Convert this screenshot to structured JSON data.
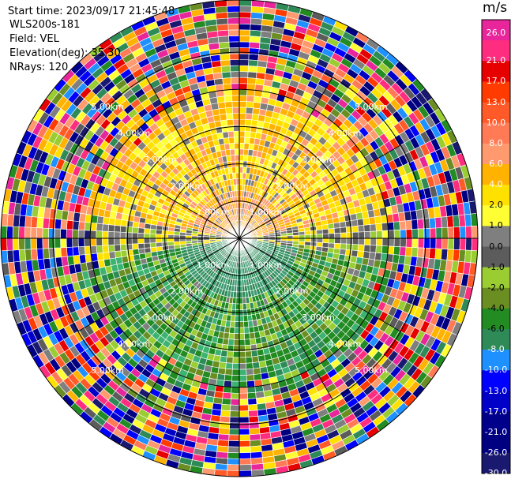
{
  "header": {
    "start_time": "Start time: 2023/09/17 21:45:48",
    "instrument": "WLS200s-181",
    "field": "Field: VEL",
    "elevation": "Elevation(deg): 35.30",
    "nrays": "NRays: 120"
  },
  "colorbar": {
    "unit": "m/s",
    "ticks": [
      "26.0",
      "21.0",
      "17.0",
      "13.0",
      "10.0",
      "8.0",
      "6.0",
      "4.0",
      "2.0",
      "1.0",
      "0.0",
      "-1.0",
      "-2.0",
      "-4.0",
      "-6.0",
      "-8.0",
      "-10.0",
      "-13.0",
      "-17.0",
      "-21.0",
      "-26.0",
      "-30.0"
    ],
    "colors": [
      "#e8259a",
      "#ff2d7f",
      "#e60000",
      "#ff3b00",
      "#ff5a28",
      "#ff7a55",
      "#ff9a6e",
      "#ffb300",
      "#ffe100",
      "#ffff33",
      "#7f7f7f",
      "#5c5c5c",
      "#9acd32",
      "#6b8e23",
      "#228b22",
      "#2e8b57",
      "#1e90ff",
      "#0000ff",
      "#0000c8",
      "#00008b",
      "#000080",
      "#191970"
    ]
  },
  "chart_data": {
    "type": "heatmap",
    "projection": "polar PPI (plan position indicator)",
    "field": "VEL",
    "units": "m/s",
    "rays": 120,
    "elevation_deg": 35.3,
    "range_ring_labels": [
      "1.00km",
      "2.00km",
      "3.00km",
      "4.00km",
      "5.00km"
    ],
    "range_rings_km": [
      1,
      2,
      3,
      4,
      5
    ],
    "max_range_km": 6.4,
    "spoke_angles_deg": [
      0,
      30,
      60,
      90,
      120,
      150,
      180,
      210,
      240,
      270,
      300,
      330
    ],
    "velocity_regions": [
      {
        "region": "north near range",
        "range_km": [
          0,
          2.8
        ],
        "value_m_s": "2.0 to 8.0"
      },
      {
        "region": "south near range",
        "range_km": [
          0,
          3.0
        ],
        "value_m_s": "-2.0 to -8.0"
      },
      {
        "region": "east-west band",
        "value_m_s": "-1.0 to 1.0"
      },
      {
        "region": "far range",
        "range_km": [
          4.0,
          6.4
        ],
        "value_m_s": "noise, -30.0 to 26.0"
      }
    ],
    "colorbar_limits": [
      -30.0,
      26.0
    ]
  }
}
